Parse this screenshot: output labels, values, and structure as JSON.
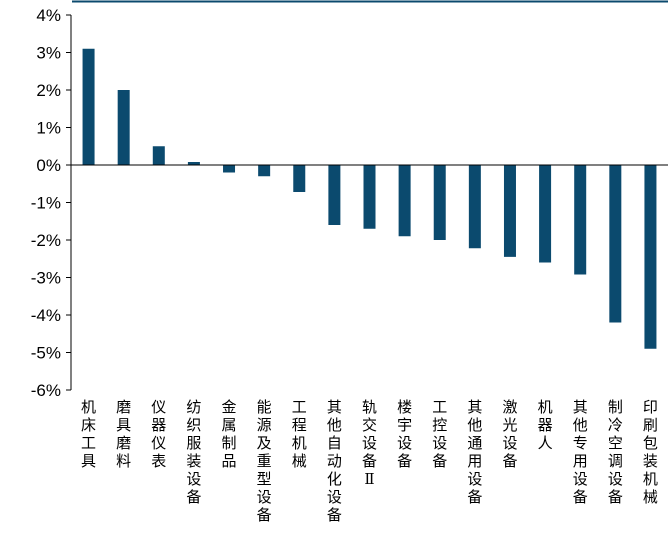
{
  "chart_data": {
    "type": "bar",
    "title": "",
    "xlabel": "",
    "ylabel": "",
    "ylim": [
      -6,
      4
    ],
    "yticks": [
      4,
      3,
      2,
      1,
      0,
      -1,
      -2,
      -3,
      -4,
      -5,
      -6
    ],
    "ytick_labels": [
      "4%",
      "3%",
      "2%",
      "1%",
      "0%",
      "-1%",
      "-2%",
      "-3%",
      "-4%",
      "-5%",
      "-6%"
    ],
    "grid": false,
    "legend": "none",
    "bar_color": "#0b4a6e",
    "categories": [
      "机床工具",
      "磨具磨料",
      "仪器仪表",
      "纺织服装设备",
      "金属制品",
      "能源及重型设备",
      "工程机械",
      "其他自动化设备",
      "轨交设备Ⅱ",
      "楼宇设备",
      "工控设备",
      "其他通用设备",
      "激光设备",
      "机器人",
      "其他专用设备",
      "制冷空调设备",
      "印刷包装机械"
    ],
    "values": [
      3.1,
      2.0,
      0.5,
      0.08,
      -0.2,
      -0.3,
      -0.72,
      -1.6,
      -1.7,
      -1.9,
      -2.0,
      -2.22,
      -2.45,
      -2.6,
      -2.92,
      -4.2,
      -4.9
    ]
  }
}
